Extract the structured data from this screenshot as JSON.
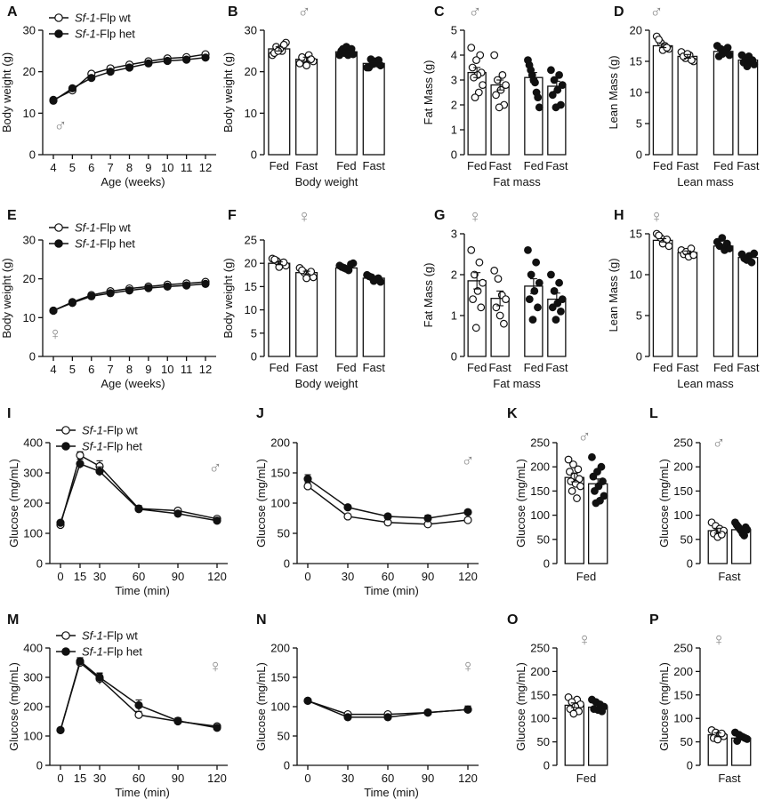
{
  "figure": {
    "description_free": true
  },
  "chart_data": [
    {
      "id": "A",
      "type": "line",
      "x": [
        4,
        5,
        6,
        7,
        8,
        9,
        10,
        11,
        12
      ],
      "xlabel": "Age (weeks)",
      "ylabel": "Body weight (g)",
      "ylim": [
        0,
        30
      ],
      "yticks": [
        0,
        10,
        20,
        30
      ],
      "sex": "♂",
      "legend": [
        {
          "name": "Sf-1",
          "suffix": "-Flp wt",
          "marker": "open"
        },
        {
          "name": "Sf-1",
          "suffix": "-Flp het",
          "marker": "filled"
        }
      ],
      "series": [
        {
          "name": "Sf-1-Flp wt",
          "marker": "open",
          "values": [
            13.2,
            15.5,
            19.5,
            20.8,
            21.7,
            22.5,
            23.2,
            23.5,
            24.2
          ]
        },
        {
          "name": "Sf-1-Flp het",
          "marker": "filled",
          "values": [
            13.0,
            16.0,
            18.5,
            20.0,
            21.0,
            22.0,
            22.6,
            22.9,
            23.4
          ]
        }
      ]
    },
    {
      "id": "B",
      "type": "bar",
      "categories": [
        "Fed",
        "Fast",
        "Fed",
        "Fast"
      ],
      "group_labels": [
        "Body weight"
      ],
      "ylabel": "Body weight (g)",
      "ylim": [
        0,
        30
      ],
      "yticks": [
        0,
        10,
        20,
        30
      ],
      "sex": "♂",
      "values": [
        25.5,
        23.0,
        24.8,
        22.0
      ],
      "markers": [
        "open",
        "open",
        "filled",
        "filled"
      ],
      "errors": [
        0.5,
        0.5,
        0.4,
        0.4
      ],
      "points": [
        [
          24,
          25,
          26,
          27,
          25.5,
          24.5,
          26.5,
          25
        ],
        [
          22,
          23,
          24,
          22.5,
          23.5,
          21.5,
          23
        ],
        [
          24,
          25,
          25.5,
          24.5,
          26,
          24,
          25,
          25.5,
          24.2
        ],
        [
          21,
          22,
          23,
          21.5,
          22.5,
          21,
          22.8,
          21.8
        ]
      ]
    },
    {
      "id": "C",
      "type": "bar",
      "categories": [
        "Fed",
        "Fast",
        "Fed",
        "Fast"
      ],
      "group_labels": [
        "Fat mass"
      ],
      "ylabel": "Fat Mass (g)",
      "ylim": [
        0,
        5
      ],
      "yticks": [
        0,
        1,
        2,
        3,
        4,
        5
      ],
      "sex": "♂",
      "values": [
        3.3,
        2.8,
        3.1,
        2.75
      ],
      "markers": [
        "open",
        "open",
        "filled",
        "filled"
      ],
      "errors": [
        0.2,
        0.2,
        0.2,
        0.2
      ],
      "points": [
        [
          4.3,
          4.0,
          3.8,
          3.5,
          3.3,
          3.2,
          3.1,
          2.8,
          2.5,
          2.3
        ],
        [
          4.0,
          3.2,
          3.0,
          2.8,
          2.6,
          2.4,
          2.0,
          1.9
        ],
        [
          3.8,
          3.6,
          3.4,
          3.2,
          3.0,
          2.9,
          2.5,
          2.3,
          1.9
        ],
        [
          3.4,
          3.2,
          3.0,
          2.8,
          2.6,
          2.4,
          2.0,
          1.9
        ]
      ]
    },
    {
      "id": "D",
      "type": "bar",
      "categories": [
        "Fed",
        "Fast",
        "Fed",
        "Fast"
      ],
      "group_labels": [
        "Lean mass"
      ],
      "ylabel": "Lean Mass (g)",
      "ylim": [
        0,
        20
      ],
      "yticks": [
        0,
        5,
        10,
        15,
        20
      ],
      "sex": "♂",
      "values": [
        17.5,
        15.8,
        16.6,
        15.2
      ],
      "markers": [
        "open",
        "open",
        "filled",
        "filled"
      ],
      "errors": [
        0.3,
        0.3,
        0.3,
        0.3
      ],
      "points": [
        [
          19,
          18,
          17.5,
          17,
          18.5,
          16.8,
          17.2
        ],
        [
          16.5,
          15.5,
          16,
          15,
          15.8,
          16.2,
          15.2
        ],
        [
          17.5,
          16.5,
          17,
          16,
          16.8,
          15.8,
          17.2,
          16.2
        ],
        [
          16,
          15,
          15.5,
          14.5,
          15.8,
          14.8,
          15.2,
          14.2
        ]
      ]
    },
    {
      "id": "E",
      "type": "line",
      "x": [
        4,
        5,
        6,
        7,
        8,
        9,
        10,
        11,
        12
      ],
      "xlabel": "Age (weeks)",
      "ylabel": "Body weight (g)",
      "ylim": [
        0,
        30
      ],
      "yticks": [
        0,
        10,
        20,
        30
      ],
      "sex": "♀",
      "legend": [
        {
          "name": "Sf-1",
          "suffix": "-Flp wt",
          "marker": "open"
        },
        {
          "name": "Sf-1",
          "suffix": "-Flp het",
          "marker": "filled"
        }
      ],
      "series": [
        {
          "name": "Sf-1-Flp wt",
          "marker": "open",
          "values": [
            11.8,
            14.0,
            15.8,
            16.8,
            17.5,
            18.0,
            18.5,
            18.8,
            19.2
          ]
        },
        {
          "name": "Sf-1-Flp het",
          "marker": "filled",
          "values": [
            11.8,
            13.8,
            15.5,
            16.3,
            17.0,
            17.6,
            18.0,
            18.3,
            18.7
          ]
        }
      ]
    },
    {
      "id": "F",
      "type": "bar",
      "categories": [
        "Fed",
        "Fast",
        "Fed",
        "Fast"
      ],
      "group_labels": [
        "Body weight"
      ],
      "ylabel": "Body weight (g)",
      "ylim": [
        0,
        25
      ],
      "yticks": [
        0,
        5,
        10,
        15,
        20,
        25
      ],
      "sex": "♀",
      "values": [
        20.0,
        18.0,
        19.0,
        16.8
      ],
      "markers": [
        "open",
        "open",
        "filled",
        "filled"
      ],
      "errors": [
        0.3,
        0.3,
        0.3,
        0.3
      ],
      "points": [
        [
          21,
          20.5,
          20,
          19.5,
          20.8,
          19.2,
          20.2
        ],
        [
          19,
          18,
          17.5,
          17,
          18.5,
          16.8,
          18.2
        ],
        [
          19.5,
          19,
          18.5,
          20,
          19.2,
          18.8,
          19.8
        ],
        [
          17.5,
          17,
          16.5,
          16,
          17.2,
          16.2,
          16.8
        ]
      ]
    },
    {
      "id": "G",
      "type": "bar",
      "categories": [
        "Fed",
        "Fast",
        "Fed",
        "Fast"
      ],
      "group_labels": [
        "Fat mass"
      ],
      "ylabel": "Fat Mass (g)",
      "ylim": [
        0,
        3
      ],
      "yticks": [
        0,
        1,
        2,
        3
      ],
      "sex": "♀",
      "values": [
        1.85,
        1.42,
        1.72,
        1.4
      ],
      "markers": [
        "open",
        "open",
        "filled",
        "filled"
      ],
      "errors": [
        0.2,
        0.18,
        0.18,
        0.15
      ],
      "points": [
        [
          2.6,
          2.3,
          2.0,
          1.8,
          1.6,
          1.4,
          1.2,
          0.7
        ],
        [
          2.1,
          1.9,
          1.5,
          1.4,
          1.2,
          1.0,
          0.8
        ],
        [
          2.6,
          2.3,
          2.0,
          1.8,
          1.6,
          1.4,
          1.2,
          0.9
        ],
        [
          2.0,
          1.8,
          1.6,
          1.4,
          1.3,
          1.2,
          1.1,
          0.9
        ]
      ]
    },
    {
      "id": "H",
      "type": "bar",
      "categories": [
        "Fed",
        "Fast",
        "Fed",
        "Fast"
      ],
      "group_labels": [
        "Lean mass"
      ],
      "ylabel": "Lean Mass (g)",
      "ylim": [
        0,
        15
      ],
      "yticks": [
        0,
        5,
        10,
        15
      ],
      "sex": "♀",
      "values": [
        14.2,
        12.7,
        13.5,
        12.1
      ],
      "markers": [
        "open",
        "open",
        "filled",
        "filled"
      ],
      "errors": [
        0.2,
        0.2,
        0.2,
        0.2
      ],
      "points": [
        [
          15,
          14.5,
          14,
          13.5,
          14.8,
          13.8,
          14.3
        ],
        [
          13,
          12.5,
          12.8,
          12.2,
          13.2,
          12.4
        ],
        [
          14,
          13.5,
          14.5,
          13,
          13.8,
          13.2
        ],
        [
          12.5,
          12,
          11.8,
          12.3,
          11.5,
          12.6
        ]
      ]
    },
    {
      "id": "I",
      "type": "line",
      "x": [
        0,
        15,
        30,
        60,
        90,
        120
      ],
      "xlabel": "Time (min)",
      "ylabel": "Glucose (mg/mL)",
      "ylim": [
        0,
        400
      ],
      "yticks": [
        0,
        100,
        200,
        300,
        400
      ],
      "sex": "♂",
      "legend": [
        {
          "name": "Sf-1",
          "suffix": "-Flp wt",
          "marker": "open"
        },
        {
          "name": "Sf-1",
          "suffix": "-Flp het",
          "marker": "filled"
        }
      ],
      "series": [
        {
          "name": "Sf-1-Flp wt",
          "marker": "open",
          "values": [
            128,
            358,
            322,
            182,
            175,
            148
          ],
          "errors": [
            8,
            12,
            18,
            10,
            8,
            8
          ]
        },
        {
          "name": "Sf-1-Flp het",
          "marker": "filled",
          "values": [
            135,
            330,
            305,
            180,
            165,
            142
          ],
          "errors": [
            8,
            15,
            15,
            10,
            8,
            8
          ]
        }
      ]
    },
    {
      "id": "J",
      "type": "line",
      "x": [
        0,
        30,
        60,
        90,
        120
      ],
      "xlabel": "Time (min)",
      "ylabel": "Glucose (mg/mL)",
      "ylim": [
        0,
        200
      ],
      "yticks": [
        0,
        50,
        100,
        150,
        200
      ],
      "sex": "♂",
      "series": [
        {
          "name": "Sf-1-Flp wt",
          "marker": "open",
          "values": [
            128,
            78,
            68,
            65,
            72
          ],
          "errors": [
            6,
            4,
            3,
            3,
            4
          ]
        },
        {
          "name": "Sf-1-Flp het",
          "marker": "filled",
          "values": [
            140,
            93,
            78,
            75,
            85
          ],
          "errors": [
            7,
            4,
            4,
            5,
            4
          ]
        }
      ]
    },
    {
      "id": "K",
      "type": "bar",
      "categories": [
        "",
        ""
      ],
      "group_labels": [
        "Fed"
      ],
      "ylabel": "Glucose (mg/mL)",
      "ylim": [
        0,
        250
      ],
      "yticks": [
        0,
        50,
        100,
        150,
        200,
        250
      ],
      "sex": "♂",
      "values": [
        178,
        165
      ],
      "markers": [
        "open",
        "filled"
      ],
      "errors": [
        9,
        10
      ],
      "points": [
        [
          215,
          205,
          195,
          190,
          180,
          175,
          170,
          165,
          160,
          150,
          135
        ],
        [
          220,
          200,
          190,
          180,
          170,
          160,
          150,
          140,
          130,
          125
        ]
      ]
    },
    {
      "id": "L",
      "type": "bar",
      "categories": [
        "",
        ""
      ],
      "group_labels": [
        "Fast"
      ],
      "ylabel": "Glucose (mg/mL)",
      "ylim": [
        0,
        250
      ],
      "yticks": [
        0,
        50,
        100,
        150,
        200,
        250
      ],
      "sex": "♂",
      "values": [
        68,
        70
      ],
      "markers": [
        "open",
        "filled"
      ],
      "errors": [
        5,
        5
      ],
      "points": [
        [
          85,
          78,
          72,
          68,
          62,
          55,
          60
        ],
        [
          85,
          80,
          76,
          72,
          68,
          62,
          58,
          75,
          70
        ]
      ]
    },
    {
      "id": "M",
      "type": "line",
      "x": [
        0,
        15,
        30,
        60,
        90,
        120
      ],
      "xlabel": "Time (min)",
      "ylabel": "Glucose (mg/mL)",
      "ylim": [
        0,
        400
      ],
      "yticks": [
        0,
        100,
        200,
        300,
        400
      ],
      "sex": "♀",
      "legend": [
        {
          "name": "Sf-1",
          "suffix": "-Flp wt",
          "marker": "open"
        },
        {
          "name": "Sf-1",
          "suffix": "-Flp het",
          "marker": "filled"
        }
      ],
      "series": [
        {
          "name": "Sf-1-Flp wt",
          "marker": "open",
          "values": [
            120,
            350,
            295,
            172,
            150,
            133
          ],
          "errors": [
            6,
            12,
            18,
            12,
            10,
            8
          ]
        },
        {
          "name": "Sf-1-Flp het",
          "marker": "filled",
          "values": [
            120,
            355,
            300,
            205,
            152,
            128
          ],
          "errors": [
            6,
            12,
            15,
            18,
            10,
            8
          ]
        }
      ]
    },
    {
      "id": "N",
      "type": "line",
      "x": [
        0,
        30,
        60,
        90,
        120
      ],
      "xlabel": "Time (min)",
      "ylabel": "Glucose (mg/mL)",
      "ylim": [
        0,
        200
      ],
      "yticks": [
        0,
        50,
        100,
        150,
        200
      ],
      "sex": "♀",
      "series": [
        {
          "name": "Sf-1-Flp wt",
          "marker": "open",
          "values": [
            110,
            87,
            87,
            90,
            95
          ],
          "errors": [
            4,
            3,
            3,
            4,
            6
          ]
        },
        {
          "name": "Sf-1-Flp het",
          "marker": "filled",
          "values": [
            110,
            82,
            82,
            90,
            95
          ],
          "errors": [
            4,
            3,
            3,
            4,
            6
          ]
        }
      ]
    },
    {
      "id": "O",
      "type": "bar",
      "categories": [
        "",
        ""
      ],
      "group_labels": [
        "Fed"
      ],
      "ylabel": "Glucose (mg/mL)",
      "ylim": [
        0,
        250
      ],
      "yticks": [
        0,
        50,
        100,
        150,
        200,
        250
      ],
      "sex": "♀",
      "values": [
        128,
        124
      ],
      "markers": [
        "open",
        "filled"
      ],
      "errors": [
        5,
        4
      ],
      "points": [
        [
          145,
          140,
          135,
          130,
          125,
          120,
          115,
          110
        ],
        [
          140,
          135,
          130,
          125,
          120,
          118,
          115
        ]
      ]
    },
    {
      "id": "P",
      "type": "bar",
      "categories": [
        "",
        ""
      ],
      "group_labels": [
        "Fast"
      ],
      "ylabel": "Glucose (mg/mL)",
      "ylim": [
        0,
        250
      ],
      "yticks": [
        0,
        50,
        100,
        150,
        200,
        250
      ],
      "sex": "♀",
      "values": [
        65,
        58
      ],
      "markers": [
        "open",
        "filled"
      ],
      "errors": [
        4,
        3
      ],
      "points": [
        [
          75,
          70,
          66,
          62,
          58,
          55,
          68
        ],
        [
          70,
          65,
          60,
          56,
          52,
          62,
          58
        ]
      ]
    }
  ]
}
